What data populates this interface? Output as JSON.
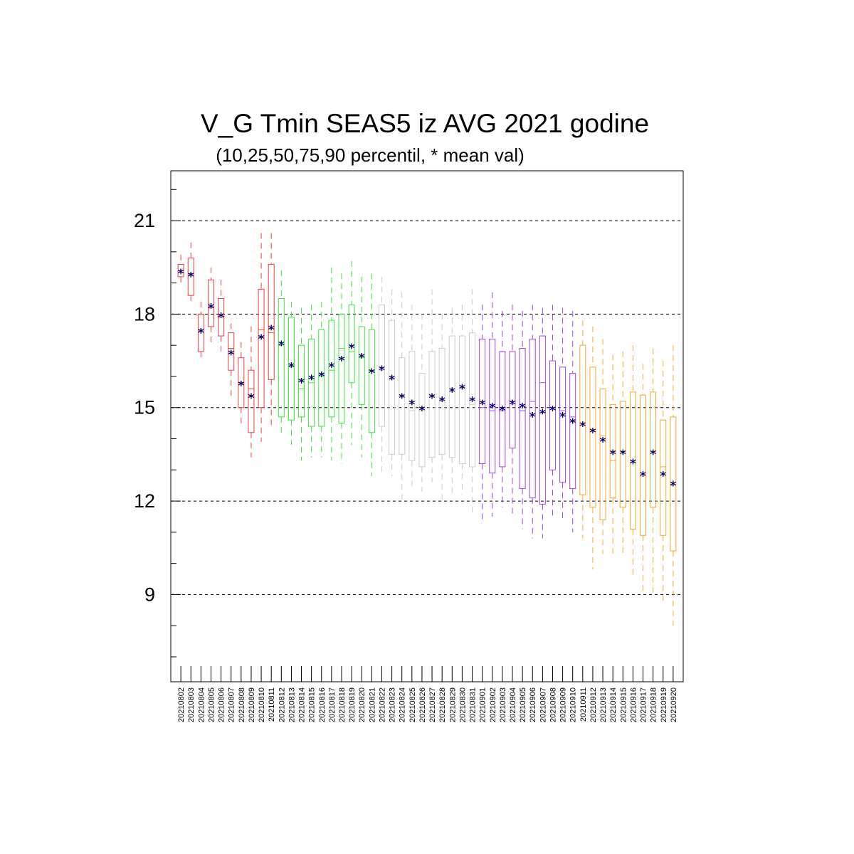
{
  "chart_data": {
    "type": "boxplot",
    "title": "V_G Tmin SEAS5 iz AVG 2021 godine",
    "subtitle": "(10,25,50,75,90 percentil, * mean val)",
    "ylim": [
      6.2,
      22.6
    ],
    "yticks": [
      9,
      12,
      15,
      18,
      21
    ],
    "grid": "horizontal dashed at major ticks",
    "colors": {
      "august_early": "#f03c3c",
      "august_mid": "#39e639",
      "august_late": "#cccccc",
      "september_early": "#a040f0",
      "september_late": "#f0a830",
      "mean_marker": "#000066"
    },
    "x": [
      "20210802",
      "20210803",
      "20210804",
      "20210805",
      "20210806",
      "20210807",
      "20210808",
      "20210809",
      "20210810",
      "20210811",
      "20210812",
      "20210813",
      "20210814",
      "20210815",
      "20210816",
      "20210817",
      "20210818",
      "20210819",
      "20210820",
      "20210821",
      "20210822",
      "20210823",
      "20210824",
      "20210825",
      "20210826",
      "20210827",
      "20210828",
      "20210829",
      "20210830",
      "20210831",
      "20210901",
      "20210902",
      "20210903",
      "20210904",
      "20210905",
      "20210906",
      "20210907",
      "20210908",
      "20210909",
      "20210910",
      "20210911",
      "20210912",
      "20210913",
      "20210914",
      "20210915",
      "20210916",
      "20210917",
      "20210918",
      "20210919",
      "20210920"
    ],
    "box_colors": [
      "#f03c3c",
      "#f03c3c",
      "#f03c3c",
      "#f03c3c",
      "#f03c3c",
      "#f03c3c",
      "#f03c3c",
      "#f03c3c",
      "#f03c3c",
      "#f03c3c",
      "#39e639",
      "#39e639",
      "#39e639",
      "#39e639",
      "#39e639",
      "#39e639",
      "#39e639",
      "#39e639",
      "#39e639",
      "#39e639",
      "#cccccc",
      "#cccccc",
      "#cccccc",
      "#cccccc",
      "#cccccc",
      "#cccccc",
      "#cccccc",
      "#cccccc",
      "#cccccc",
      "#cccccc",
      "#a040f0",
      "#a040f0",
      "#a040f0",
      "#a040f0",
      "#a040f0",
      "#a040f0",
      "#a040f0",
      "#a040f0",
      "#a040f0",
      "#a040f0",
      "#f0a830",
      "#f0a830",
      "#f0a830",
      "#f0a830",
      "#f0a830",
      "#f0a830",
      "#f0a830",
      "#f0a830",
      "#f0a830",
      "#f0a830"
    ],
    "p10": [
      18.9,
      18.3,
      16.5,
      17.1,
      16.8,
      15.3,
      14.5,
      13.4,
      13.9,
      14.3,
      14.1,
      13.8,
      13.3,
      13.4,
      13.4,
      13.3,
      13.2,
      13.8,
      13.4,
      12.8,
      12.8,
      12.8,
      12.0,
      12.4,
      12.3,
      12.6,
      12.0,
      12.2,
      12.2,
      11.5,
      11.3,
      11.5,
      11.8,
      11.5,
      11.1,
      10.8,
      10.8,
      11.4,
      11.4,
      11.0,
      10.8,
      9.8,
      10.3,
      10.3,
      10.3,
      9.5,
      9.0,
      9.0,
      8.8,
      8.0
    ],
    "p25": [
      19.2,
      18.6,
      16.8,
      17.6,
      17.3,
      16.2,
      15.0,
      14.2,
      15.0,
      15.9,
      14.7,
      14.6,
      14.7,
      14.4,
      14.4,
      14.7,
      14.5,
      15.8,
      15.1,
      14.2,
      14.4,
      13.5,
      13.5,
      13.3,
      13.1,
      13.4,
      13.5,
      13.4,
      13.2,
      13.1,
      13.2,
      12.9,
      13.1,
      13.7,
      12.4,
      12.1,
      11.9,
      13.0,
      12.6,
      12.4,
      12.2,
      11.8,
      11.4,
      12.1,
      11.8,
      11.1,
      10.9,
      11.8,
      10.9,
      10.4
    ],
    "p50": [
      19.4,
      19.3,
      17.5,
      18.2,
      17.9,
      16.9,
      15.8,
      15.6,
      17.5,
      17.4,
      17.0,
      16.3,
      15.6,
      15.8,
      16.0,
      16.2,
      16.9,
      16.8,
      16.6,
      16.2,
      16.2,
      15.9,
      15.4,
      14.9,
      14.9,
      15.4,
      15.2,
      15.6,
      15.6,
      15.1,
      15.0,
      14.9,
      14.9,
      15.2,
      14.9,
      15.2,
      15.8,
      15.0,
      14.9,
      14.7,
      14.5,
      14.3,
      14.1,
      13.3,
      13.6,
      13.3,
      12.8,
      13.6,
      13.1,
      12.5
    ],
    "p75": [
      19.6,
      19.8,
      18.0,
      19.1,
      18.5,
      17.4,
      16.6,
      16.2,
      18.8,
      19.6,
      18.5,
      17.9,
      17.0,
      17.2,
      17.5,
      17.8,
      18.0,
      18.3,
      17.6,
      17.5,
      18.3,
      17.8,
      16.6,
      16.8,
      16.1,
      16.8,
      16.9,
      17.3,
      17.3,
      17.4,
      17.2,
      17.2,
      16.8,
      16.8,
      16.9,
      17.2,
      17.3,
      16.5,
      16.3,
      16.1,
      17.0,
      16.3,
      15.6,
      15.1,
      15.2,
      15.5,
      15.4,
      15.5,
      14.6,
      14.7
    ],
    "p90": [
      19.9,
      20.3,
      18.4,
      19.5,
      19.1,
      17.7,
      17.1,
      17.6,
      20.6,
      20.6,
      19.4,
      18.4,
      18.2,
      18.3,
      18.4,
      19.5,
      19.3,
      19.7,
      19.2,
      19.3,
      19.2,
      18.8,
      18.7,
      18.3,
      18.0,
      18.8,
      18.0,
      18.2,
      18.3,
      18.8,
      18.3,
      18.7,
      18.1,
      18.3,
      18.1,
      18.3,
      18.2,
      18.3,
      18.2,
      18.1,
      17.8,
      17.6,
      17.2,
      16.7,
      16.8,
      17.0,
      16.4,
      16.9,
      16.5,
      17.0
    ],
    "mean": [
      19.4,
      19.3,
      17.5,
      18.3,
      18.0,
      16.8,
      15.8,
      15.4,
      17.3,
      17.6,
      17.1,
      16.4,
      15.9,
      16.0,
      16.1,
      16.4,
      16.6,
      17.0,
      16.7,
      16.2,
      16.3,
      16.0,
      15.4,
      15.2,
      15.0,
      15.4,
      15.3,
      15.6,
      15.7,
      15.3,
      15.2,
      15.1,
      15.0,
      15.2,
      15.1,
      14.8,
      14.9,
      15.0,
      14.8,
      14.6,
      14.5,
      14.3,
      14.0,
      13.6,
      13.6,
      13.3,
      12.9,
      13.6,
      12.9,
      12.6
    ],
    "mean_marker": "*"
  }
}
